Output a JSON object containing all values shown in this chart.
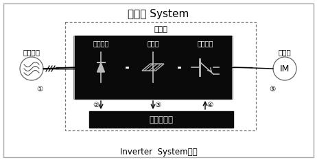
{
  "title": "인버터 System",
  "subtitle": "Inverter  System구성",
  "main_circuit_label": "주회로",
  "left_label": "상용전원",
  "right_label": "전동기",
  "right_symbol": "IM",
  "block1_label": "컨버터부",
  "block2_label": "평활부",
  "block3_label": "인버터부",
  "control_label": "제어회로부",
  "numbers": [
    "①",
    "②",
    "③",
    "④",
    "⑤"
  ],
  "bg_color": "#ffffff",
  "block_color": "#0a0a0a",
  "text_color": "#000000",
  "white": "#ffffff",
  "gray_symbol": "#bbbbbb"
}
